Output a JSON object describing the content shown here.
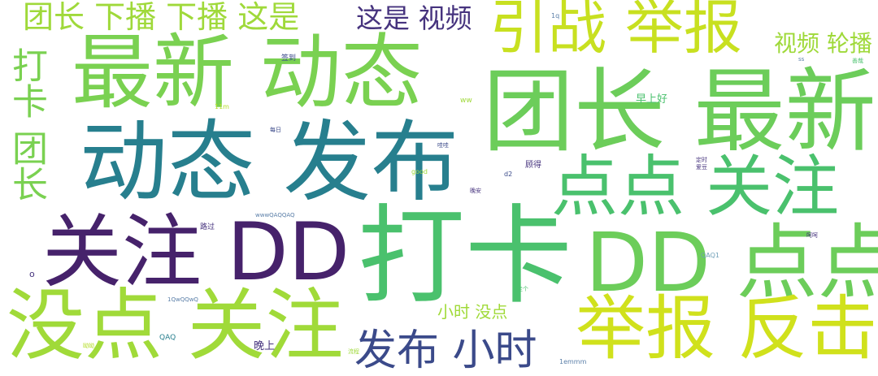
{
  "palette": {
    "background": "#ffffff",
    "dark_purple": "#46226b",
    "navy": "#3b4a8a",
    "teal": "#2a788e",
    "green": "#5ec962",
    "light_green": "#7ad151",
    "lime": "#b5de2b",
    "yellow": "#d8e219"
  },
  "words": [
    {
      "id": "w1",
      "text": "团长 下播 下播 这是",
      "color": "#9fd93a"
    },
    {
      "id": "w2",
      "text": "这是 视频",
      "color": "#46337e"
    },
    {
      "id": "w3",
      "text": "引战 举报",
      "color": "#c8e020"
    },
    {
      "id": "w4",
      "text": "视频 轮播",
      "color": "#9fd93a"
    },
    {
      "id": "w5",
      "text": "最新 动态",
      "color": "#7ad151"
    },
    {
      "id": "w6",
      "text": "团长 最新",
      "color": "#6ccd5a"
    },
    {
      "id": "w7",
      "text": "动态 发布",
      "color": "#277f8e"
    },
    {
      "id": "w8",
      "text": "点点 关注",
      "color": "#4ac16d"
    },
    {
      "id": "w9",
      "text": "打卡 团长",
      "color": "#7ad151"
    },
    {
      "id": "w10",
      "text": "关注 DD",
      "color": "#46226b"
    },
    {
      "id": "w11",
      "text": "打卡",
      "color": "#4ac16d"
    },
    {
      "id": "w12",
      "text": "DD 点点",
      "color": "#6ccd5a"
    },
    {
      "id": "w13",
      "text": "没点 关注",
      "color": "#a0da39"
    },
    {
      "id": "w14",
      "text": "举报 反击",
      "color": "#d0e11c"
    },
    {
      "id": "w15",
      "text": "发布 小时",
      "color": "#3b4a8a"
    },
    {
      "id": "w16",
      "text": "小时 没点",
      "color": "#a0da39"
    },
    {
      "id": "w17",
      "text": "早上好",
      "color": "#4ac16d"
    },
    {
      "id": "w18",
      "text": "晚上",
      "color": "#46337e"
    },
    {
      "id": "w19",
      "text": "顾得",
      "color": "#46337e"
    },
    {
      "id": "w20",
      "text": "1q",
      "color": "#5b7fa8"
    },
    {
      "id": "w21",
      "text": "签到",
      "color": "#3b4a8a"
    },
    {
      "id": "w22",
      "text": "ss",
      "color": "#5b7fa8"
    },
    {
      "id": "w23",
      "text": "善哉",
      "color": "#4ac16d"
    },
    {
      "id": "w24",
      "text": "11m",
      "color": "#b5de2b"
    },
    {
      "id": "w25",
      "text": "ww",
      "color": "#9fd93a"
    },
    {
      "id": "w26",
      "text": "每日",
      "color": "#3b4a8a"
    },
    {
      "id": "w27",
      "text": "哇哇",
      "color": "#3b4a8a"
    },
    {
      "id": "w28",
      "text": "定时",
      "color": "#46337e"
    },
    {
      "id": "w29",
      "text": "爱豆",
      "color": "#46337e"
    },
    {
      "id": "w30",
      "text": "good",
      "color": "#9fd93a"
    },
    {
      "id": "w31",
      "text": "d2",
      "color": "#3b4a8a"
    },
    {
      "id": "w32",
      "text": "晚安",
      "color": "#46337e"
    },
    {
      "id": "w33",
      "text": "wwwQAQQAQ",
      "color": "#5b7fa8"
    },
    {
      "id": "w34",
      "text": "路过",
      "color": "#46337e"
    },
    {
      "id": "w35",
      "text": "呵呵",
      "color": "#46337e"
    },
    {
      "id": "w36",
      "text": "QAQ1",
      "color": "#6f9fb8"
    },
    {
      "id": "w37",
      "text": "o",
      "color": "#46337e"
    },
    {
      "id": "w38",
      "text": "走个",
      "color": "#4ac16d"
    },
    {
      "id": "w39",
      "text": "1QwQQwQ",
      "color": "#5b7fa8"
    },
    {
      "id": "w40",
      "text": "QAQ",
      "color": "#277f8e"
    },
    {
      "id": "w41",
      "text": "呦呦",
      "color": "#b5de2b"
    },
    {
      "id": "w42",
      "text": "流程",
      "color": "#9fd93a"
    },
    {
      "id": "w43",
      "text": "1emmm",
      "color": "#5b7fa8"
    }
  ]
}
